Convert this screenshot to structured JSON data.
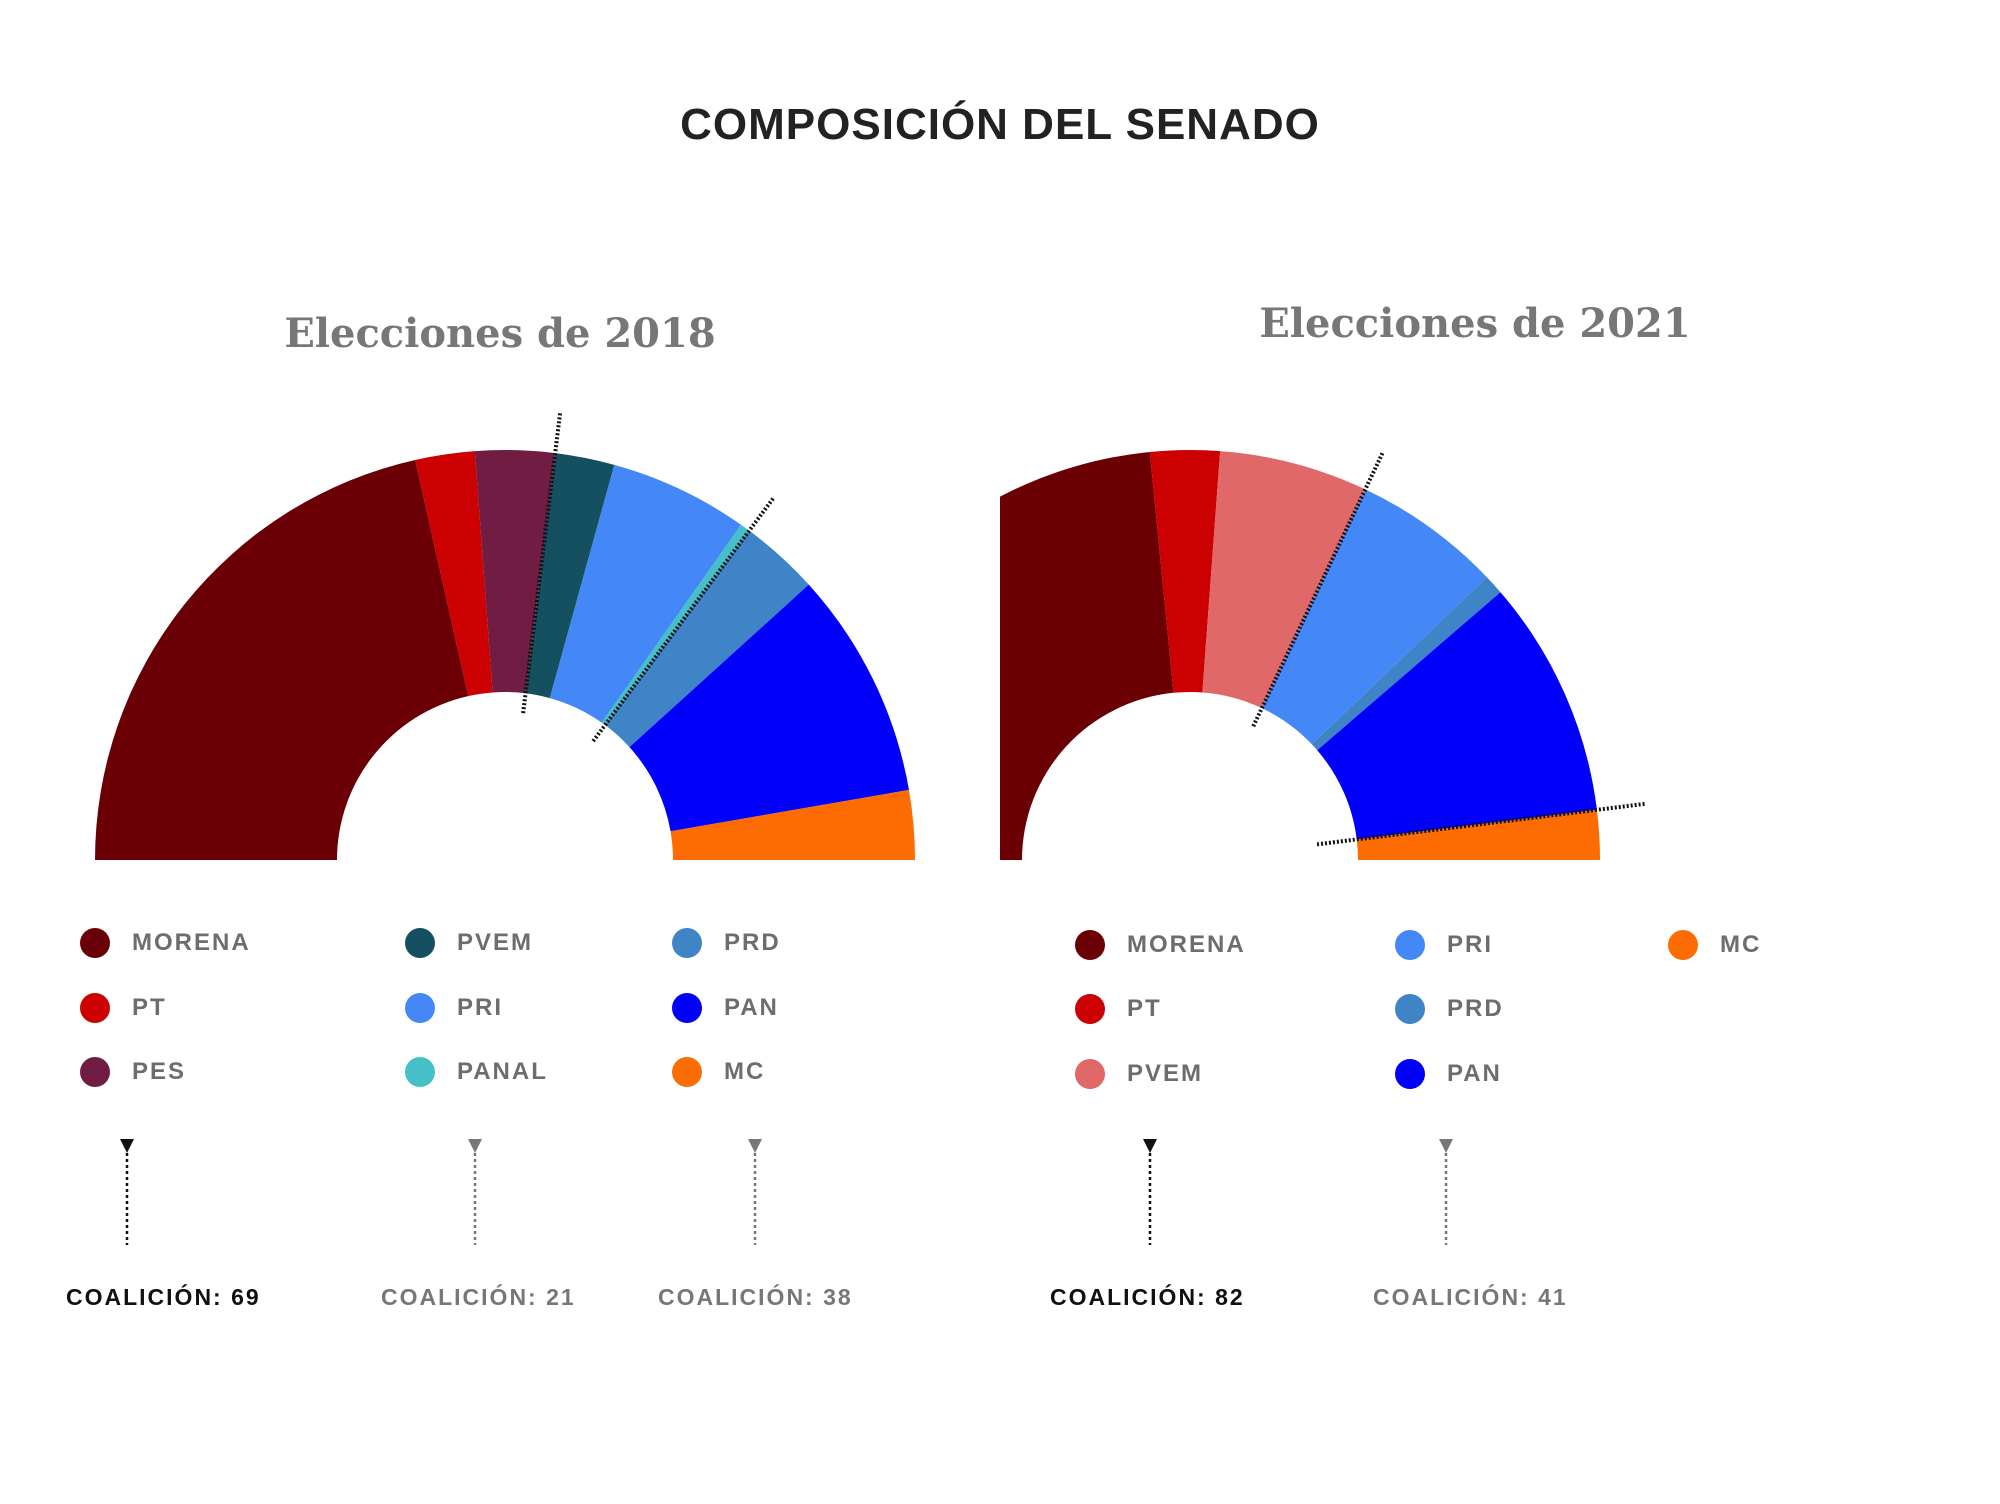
{
  "page": {
    "title": "COMPOSICIÓN DEL SENADO"
  },
  "chart_data": [
    {
      "type": "parliament-hemicycle",
      "title": "Elecciones de 2018",
      "total_seats": 128,
      "parties": [
        {
          "name": "MORENA",
          "seats": 55,
          "color": "#6a0005"
        },
        {
          "name": "PT",
          "seats": 6,
          "color": "#cc0001"
        },
        {
          "name": "PES",
          "seats": 8,
          "color": "#701c43"
        },
        {
          "name": "PVEM",
          "seats": 6,
          "color": "#145060"
        },
        {
          "name": "PRI",
          "seats": 14,
          "color": "#4488f8"
        },
        {
          "name": "PANAL",
          "seats": 1,
          "color": "#45bfc8"
        },
        {
          "name": "PRD",
          "seats": 8,
          "color": "#3f84c6"
        },
        {
          "name": "PAN",
          "seats": 23,
          "color": "#0000fb"
        },
        {
          "name": "MC",
          "seats": 7,
          "color": "#fd6c02"
        }
      ],
      "coalitions": [
        {
          "label": "COALICIÓN: 69",
          "parties": [
            "MORENA",
            "PT",
            "PES"
          ],
          "highlight": true
        },
        {
          "label": "COALICIÓN: 21",
          "parties": [
            "PVEM",
            "PRI",
            "PANAL"
          ],
          "highlight": false
        },
        {
          "label": "COALICIÓN: 38",
          "parties": [
            "PRD",
            "PAN",
            "MC"
          ],
          "highlight": false
        }
      ],
      "legend_columns": [
        [
          "MORENA",
          "PT",
          "PES"
        ],
        [
          "PVEM",
          "PRI",
          "PANAL"
        ],
        [
          "PRD",
          "PAN",
          "MC"
        ]
      ]
    },
    {
      "type": "parliament-hemicycle",
      "title": "Elecciones de 2021",
      "total_seats": 128,
      "parties": [
        {
          "name": "MORENA",
          "seats": 60,
          "color": "#6a0003"
        },
        {
          "name": "PT",
          "seats": 7,
          "color": "#cc0001"
        },
        {
          "name": "PVEM",
          "seats": 15,
          "color": "#e06868"
        },
        {
          "name": "PRI",
          "seats": 15,
          "color": "#4488f8"
        },
        {
          "name": "PRD",
          "seats": 2,
          "color": "#3f84c6"
        },
        {
          "name": "PAN",
          "seats": 24,
          "color": "#0000fb"
        },
        {
          "name": "MC",
          "seats": 5,
          "color": "#fd6c02"
        }
      ],
      "coalitions": [
        {
          "label": "COALICIÓN: 82",
          "parties": [
            "MORENA",
            "PT",
            "PVEM"
          ],
          "highlight": true
        },
        {
          "label": "COALICIÓN: 41",
          "parties": [
            "PRI",
            "PRD",
            "PAN"
          ],
          "highlight": false
        }
      ],
      "legend_columns": [
        [
          "MORENA",
          "PT",
          "PVEM"
        ],
        [
          "PRI",
          "PRD",
          "PAN"
        ],
        [
          "MC"
        ]
      ]
    }
  ]
}
